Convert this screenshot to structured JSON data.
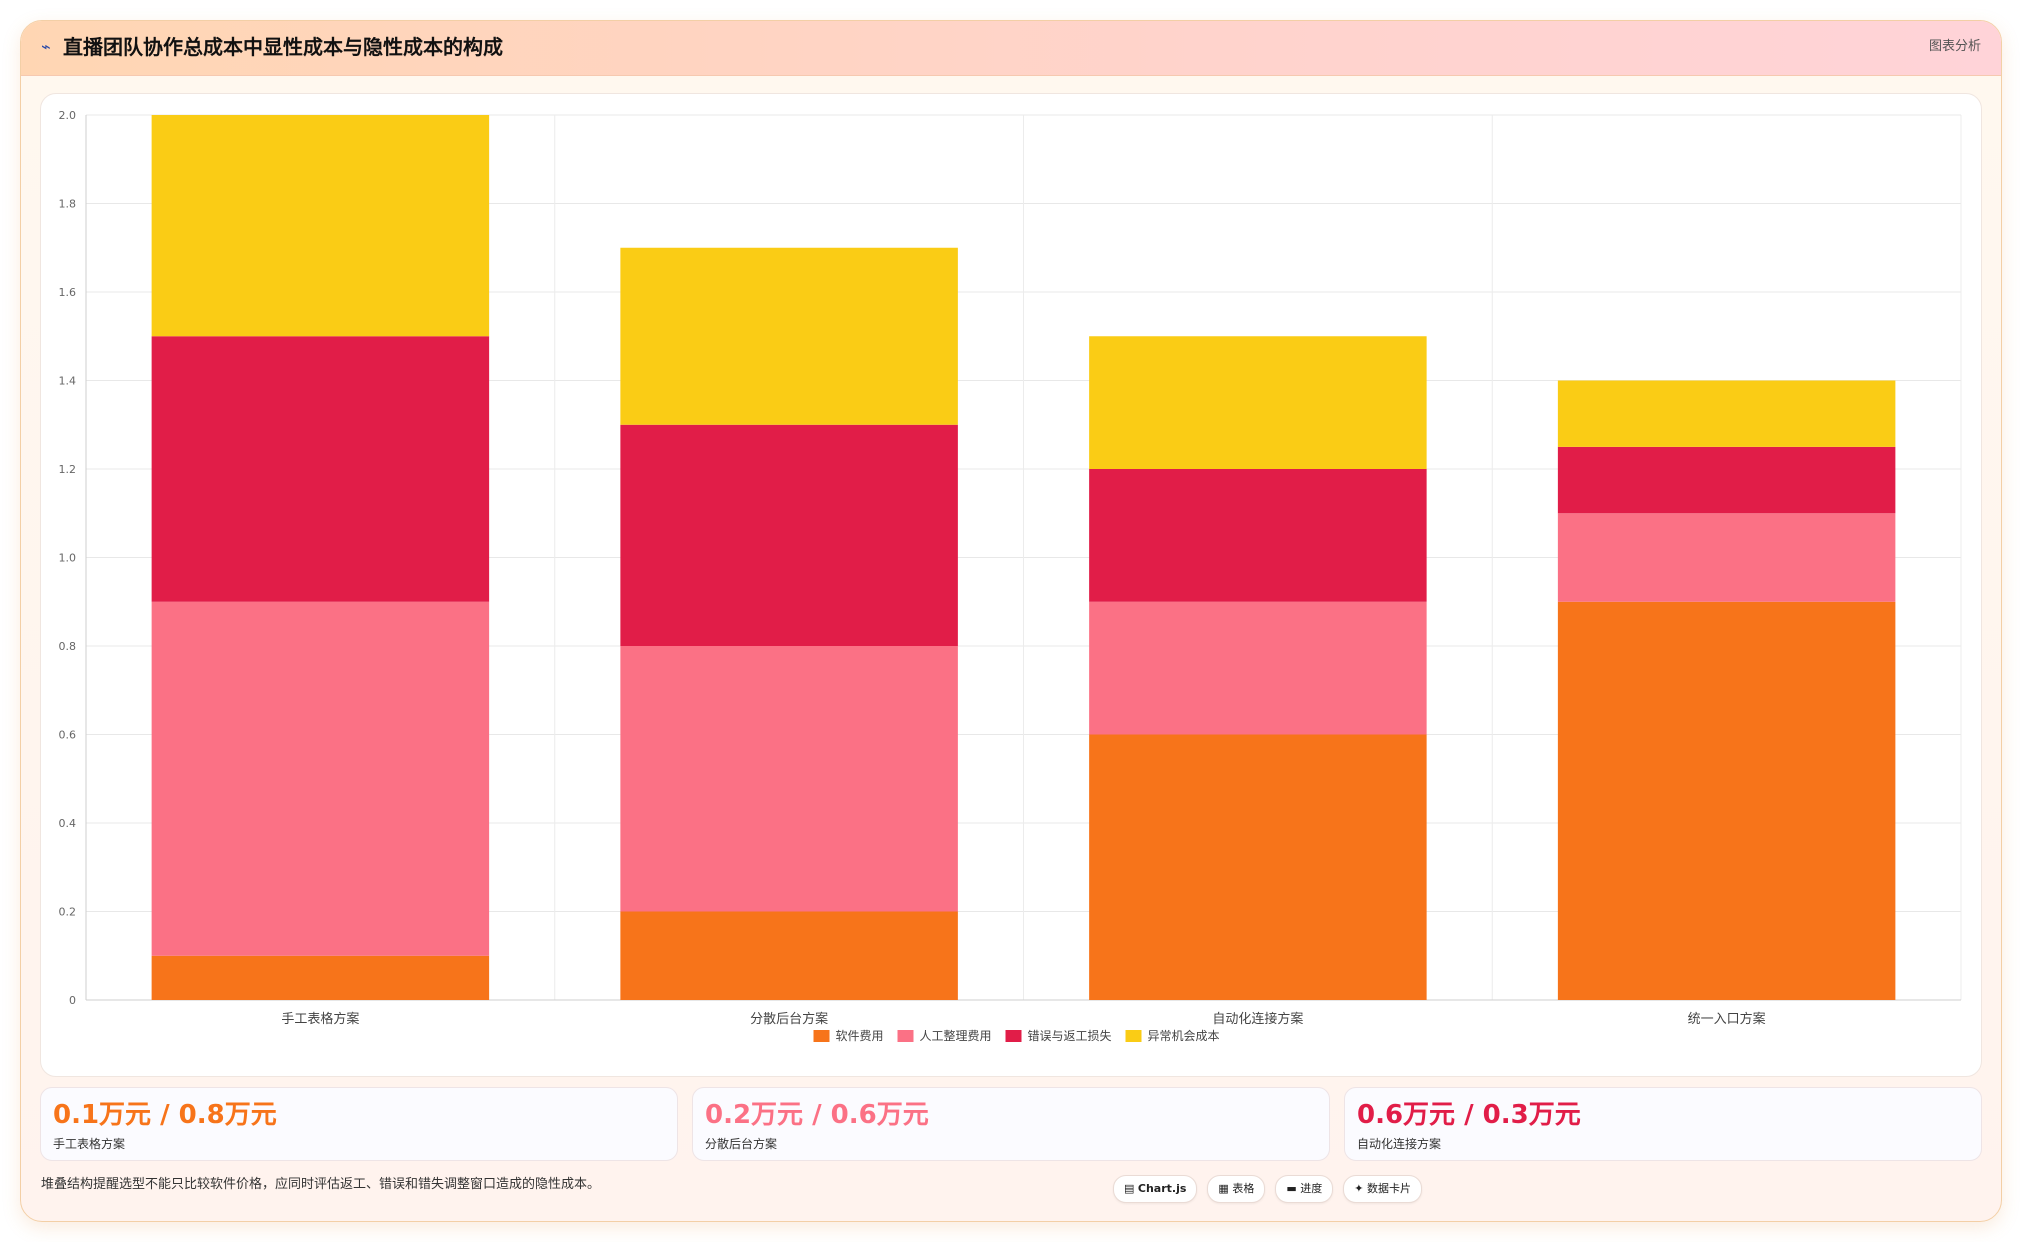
{
  "header": {
    "icon": "chart-icon",
    "title": "直播团队协作总成本中显性成本与隐性成本的构成",
    "right_label": "图表分析"
  },
  "chart_data": {
    "type": "bar",
    "stacked": true,
    "categories": [
      "手工表格方案",
      "分散后台方案",
      "自动化连接方案",
      "统一入口方案"
    ],
    "series": [
      {
        "name": "软件费用",
        "color": "#f7741a",
        "values": [
          0.1,
          0.2,
          0.6,
          0.9
        ]
      },
      {
        "name": "人工整理费用",
        "color": "#fb7185",
        "values": [
          0.8,
          0.6,
          0.3,
          0.2
        ]
      },
      {
        "name": "错误与返工损失",
        "color": "#e11d48",
        "values": [
          0.6,
          0.5,
          0.3,
          0.15
        ]
      },
      {
        "name": "异常机会成本",
        "color": "#facc15",
        "values": [
          0.5,
          0.4,
          0.3,
          0.15
        ]
      }
    ],
    "ylim": [
      0,
      2.0
    ],
    "yticks": [
      "0",
      "0.2",
      "0.4",
      "0.6",
      "0.8",
      "1.0",
      "1.2",
      "1.4",
      "1.6",
      "1.8",
      "2.0"
    ],
    "legend": "bottom-center",
    "grid": true
  },
  "kpis": [
    {
      "value": "0.1万元 / 0.8万元",
      "label": "手工表格方案",
      "color": "#f7741a"
    },
    {
      "value": "0.2万元 / 0.6万元",
      "label": "分散后台方案",
      "color": "#fb7185"
    },
    {
      "value": "0.6万元 / 0.3万元",
      "label": "自动化连接方案",
      "color": "#e11d48"
    }
  ],
  "footnote": "堆叠结构提醒选型不能只比较软件价格，应同时评估返工、错误和错失调整窗口造成的隐性成本。",
  "tags": [
    {
      "icon": "chart-icon",
      "glyph": "▤",
      "label": "Chart.js"
    },
    {
      "icon": "table-icon",
      "glyph": "▦",
      "label": "表格"
    },
    {
      "icon": "progress-icon",
      "glyph": "▬",
      "label": "进度"
    },
    {
      "icon": "card-icon",
      "glyph": "✦",
      "label": "数据卡片"
    }
  ]
}
